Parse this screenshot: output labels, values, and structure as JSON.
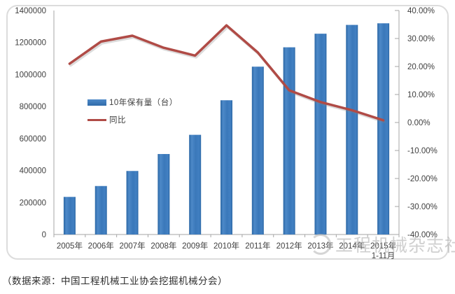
{
  "chart_data": {
    "type": "combo-bar-line",
    "categories": [
      "2005年",
      "2006年",
      "2007年",
      "2008年",
      "2009年",
      "2010年",
      "2011年",
      "2012年",
      "2013年",
      "2014年",
      "2015年\n1-11月"
    ],
    "series": [
      {
        "name": "10年保有量（台）",
        "type": "bar",
        "axis": "left",
        "color": "#3b79bb",
        "values": [
          235000,
          303000,
          397000,
          503000,
          623000,
          839000,
          1049000,
          1170000,
          1255000,
          1310000,
          1320000
        ]
      },
      {
        "name": "同比",
        "type": "line",
        "axis": "right",
        "color": "#b04b46",
        "values": [
          21.0,
          28.9,
          31.0,
          26.7,
          23.9,
          34.7,
          25.0,
          11.5,
          7.3,
          4.4,
          0.8
        ]
      }
    ],
    "left_axis": {
      "min": 0,
      "max": 1400000,
      "step": 200000,
      "tick_labels": [
        "1400000",
        "1200000",
        "1000000",
        "800000",
        "600000",
        "400000",
        "200000",
        "0"
      ]
    },
    "right_axis": {
      "min": -40,
      "max": 40,
      "step": 10,
      "tick_labels": [
        "40.00%",
        "30.00%",
        "20.00%",
        "10.00%",
        "0.00%",
        "-10.00%",
        "-20.00%",
        "-30.00%",
        "-40.00%"
      ]
    },
    "grid": false,
    "legend_position": "inside-left",
    "title": ""
  },
  "legend": {
    "bar_label": "10年保有量（台）",
    "line_label": "同比"
  },
  "watermark": {
    "logo": "circle-logo",
    "text": "工程机械杂志社"
  },
  "caption": {
    "text": "（数据来源：中国工程机械工业协会挖掘机械分会）"
  },
  "colors": {
    "bar": "#3b79bb",
    "bar_edge": "#2b67a5",
    "line": "#b04b46",
    "axis": "#a6a6a6",
    "label_text": "#3f3f3f",
    "card_border": "#dcdcdc",
    "watermark": "#b2b2b2"
  }
}
